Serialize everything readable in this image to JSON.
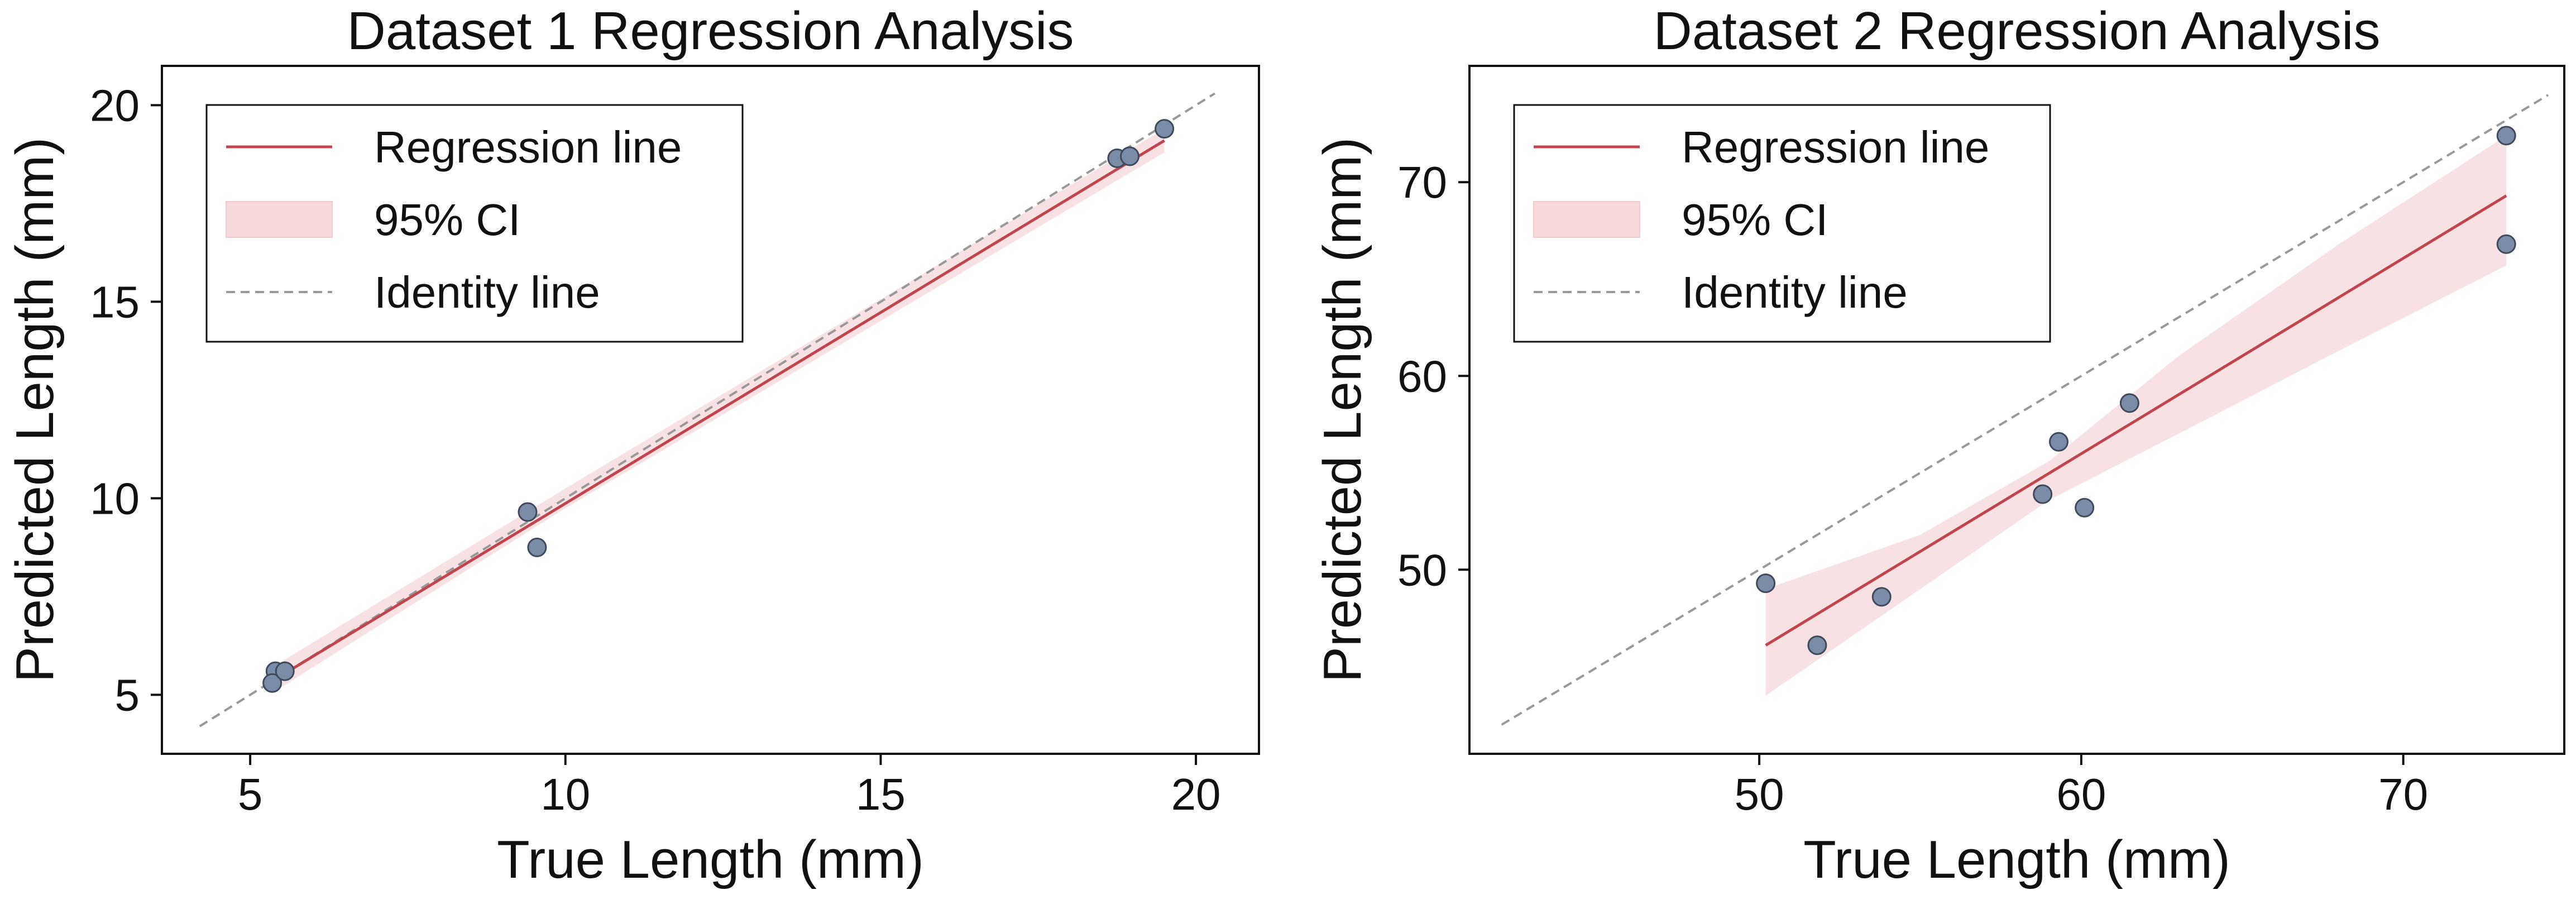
{
  "figure": {
    "colors": {
      "regression": "#c0454e",
      "ci_fill": "#f2c9cc",
      "identity": "#999999",
      "points_fill": "#7a8ca6",
      "points_edge": "#3f4a5c",
      "frame": "#111111"
    }
  },
  "chart_data": [
    {
      "type": "scatter",
      "title": "Dataset 1 Regression Analysis",
      "xlabel": "True Length (mm)",
      "ylabel": "Predicted Length (mm)",
      "xlim": [
        3.6,
        21.0
      ],
      "ylim": [
        3.5,
        21.0
      ],
      "xticks": [
        5,
        10,
        15,
        20
      ],
      "yticks": [
        5,
        10,
        15,
        20
      ],
      "grid": false,
      "legend": {
        "position": "upper-left",
        "entries": [
          "Regression line",
          "95% CI",
          "Identity line"
        ]
      },
      "points": [
        {
          "x": 5.4,
          "y": 5.6
        },
        {
          "x": 5.35,
          "y": 5.3
        },
        {
          "x": 5.55,
          "y": 5.6
        },
        {
          "x": 9.4,
          "y": 9.65
        },
        {
          "x": 9.55,
          "y": 8.75
        },
        {
          "x": 18.75,
          "y": 18.65
        },
        {
          "x": 18.95,
          "y": 18.7
        },
        {
          "x": 19.5,
          "y": 19.4
        }
      ],
      "regression": {
        "x_range": [
          5.4,
          19.5
        ],
        "y_start": 5.4,
        "y_end": 19.1
      },
      "ci_band": {
        "x": [
          5.4,
          10.0,
          19.5
        ],
        "lower": [
          5.1,
          9.75,
          18.8
        ],
        "upper": [
          5.75,
          10.25,
          19.4
        ]
      },
      "identity": {
        "range": [
          4.2,
          20.3
        ]
      }
    },
    {
      "type": "scatter",
      "title": "Dataset 2 Regression Analysis",
      "xlabel": "True Length (mm)",
      "ylabel": "Predicted Length (mm)",
      "xlim": [
        41.0,
        75.0
      ],
      "ylim": [
        40.5,
        76.0
      ],
      "xticks": [
        50,
        60,
        70
      ],
      "yticks": [
        50,
        60,
        70
      ],
      "grid": false,
      "legend": {
        "position": "upper-left",
        "entries": [
          "Regression line",
          "95% CI",
          "Identity line"
        ]
      },
      "points": [
        {
          "x": 50.2,
          "y": 49.3
        },
        {
          "x": 51.8,
          "y": 46.1
        },
        {
          "x": 53.8,
          "y": 48.6
        },
        {
          "x": 58.8,
          "y": 53.9
        },
        {
          "x": 59.3,
          "y": 56.6
        },
        {
          "x": 60.1,
          "y": 53.2
        },
        {
          "x": 61.5,
          "y": 58.6
        },
        {
          "x": 73.2,
          "y": 72.4
        },
        {
          "x": 73.2,
          "y": 66.8
        }
      ],
      "regression": {
        "x_range": [
          50.2,
          73.2
        ],
        "y_start": 46.1,
        "y_end": 69.3
      },
      "ci_band": {
        "x": [
          50.2,
          55.0,
          59.0,
          63.0,
          68.0,
          73.2
        ],
        "lower": [
          43.5,
          49.0,
          53.6,
          57.0,
          61.3,
          65.7
        ],
        "upper": [
          49.0,
          51.8,
          55.6,
          61.0,
          66.8,
          72.4
        ]
      },
      "identity": {
        "range": [
          42.0,
          74.5
        ]
      }
    }
  ]
}
